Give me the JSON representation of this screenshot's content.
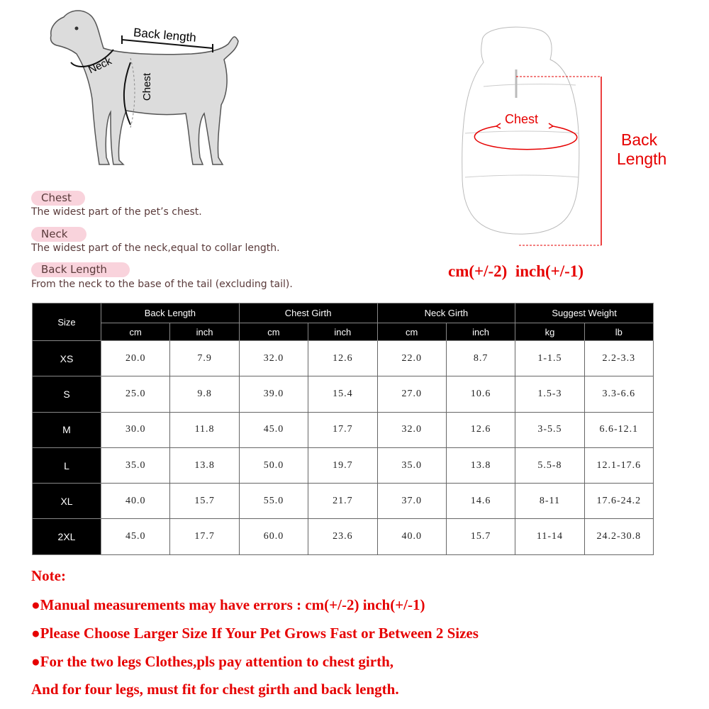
{
  "diagram": {
    "dog_labels": {
      "back_length": "Back length",
      "neck": "Neck",
      "chest": "Chest"
    },
    "coat_labels": {
      "chest": "Chest",
      "back_length_line1": "Back",
      "back_length_line2": "Length"
    },
    "tolerance": "cm(+/-2)  inch(+/-1)",
    "accent_color": "#e60000"
  },
  "definitions": [
    {
      "term": "Chest",
      "text": "The widest part of the pet’s chest."
    },
    {
      "term": "Neck",
      "text": "The widest part of the neck,equal to collar length."
    },
    {
      "term": "Back Length",
      "text": "From the neck to the base of the tail (excluding tail)."
    }
  ],
  "table": {
    "size_header": "Size",
    "groups": [
      "Back Length",
      "Chest Girth",
      "Neck Girth",
      "Suggest Weight"
    ],
    "units": [
      "cm",
      "inch",
      "cm",
      "inch",
      "cm",
      "inch",
      "kg",
      "lb"
    ],
    "rows": [
      {
        "size": "XS",
        "values": [
          "20.0",
          "7.9",
          "32.0",
          "12.6",
          "22.0",
          "8.7",
          "1-1.5",
          "2.2-3.3"
        ]
      },
      {
        "size": "S",
        "values": [
          "25.0",
          "9.8",
          "39.0",
          "15.4",
          "27.0",
          "10.6",
          "1.5-3",
          "3.3-6.6"
        ]
      },
      {
        "size": "M",
        "values": [
          "30.0",
          "11.8",
          "45.0",
          "17.7",
          "32.0",
          "12.6",
          "3-5.5",
          "6.6-12.1"
        ]
      },
      {
        "size": "L",
        "values": [
          "35.0",
          "13.8",
          "50.0",
          "19.7",
          "35.0",
          "13.8",
          "5.5-8",
          "12.1-17.6"
        ]
      },
      {
        "size": "XL",
        "values": [
          "40.0",
          "15.7",
          "55.0",
          "21.7",
          "37.0",
          "14.6",
          "8-11",
          "17.6-24.2"
        ]
      },
      {
        "size": "2XL",
        "values": [
          "45.0",
          "17.7",
          "60.0",
          "23.6",
          "40.0",
          "15.7",
          "11-14",
          "24.2-30.8"
        ]
      }
    ]
  },
  "notes": {
    "title": "Note:",
    "lines": [
      "●Manual measurements may have errors : cm(+/-2)  inch(+/-1)",
      "●Please Choose Larger Size If Your Pet Grows Fast or Between 2 Sizes",
      "●For the two legs Clothes,pls pay attention to chest girth,",
      "And for four legs, must fit for chest girth and back length."
    ]
  }
}
